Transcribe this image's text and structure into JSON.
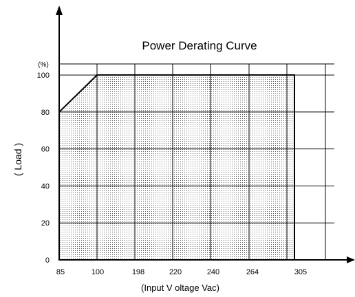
{
  "chart_data": {
    "type": "area",
    "title": "Power Derating Curve",
    "xlabel": "(Input V oltage Vac)",
    "ylabel": "( Load )",
    "yunit": "(%)",
    "x_ticks": [
      "85",
      "100",
      "198",
      "220",
      "240",
      "264",
      "305"
    ],
    "y_ticks": [
      "0",
      "20",
      "40",
      "60",
      "80",
      "100"
    ],
    "ylim": [
      0,
      100
    ],
    "grid": true,
    "fill_pattern": "dotted",
    "series": [
      {
        "points": [
          {
            "x": "85",
            "y": 80
          },
          {
            "x": "100",
            "y": 100
          },
          {
            "x": "198",
            "y": 100
          },
          {
            "x": "220",
            "y": 100
          },
          {
            "x": "240",
            "y": 100
          },
          {
            "x": "264",
            "y": 100
          },
          {
            "x": "305",
            "y": 100
          },
          {
            "x": "305",
            "y": 0
          }
        ]
      }
    ]
  }
}
